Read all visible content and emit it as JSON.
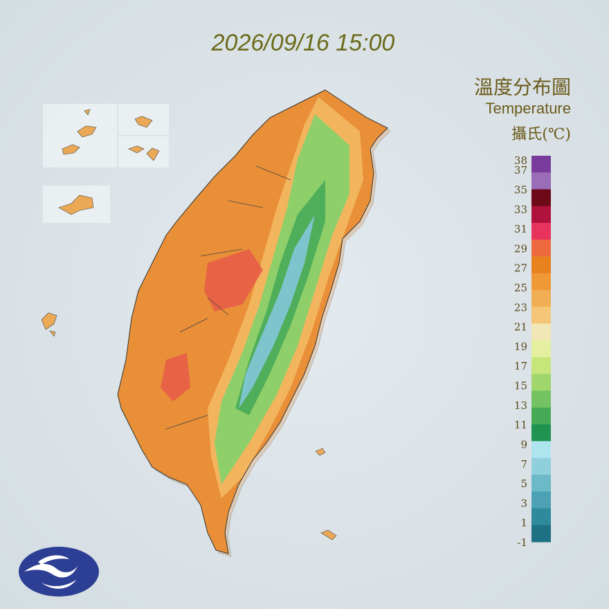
{
  "header": {
    "timestamp": "2026/09/16 15:00"
  },
  "legend": {
    "title": "溫度分布圖",
    "subtitle": "Temperature",
    "unit": "攝氏(℃)",
    "labels": [
      38,
      37,
      35,
      33,
      31,
      29,
      27,
      25,
      23,
      21,
      19,
      17,
      15,
      13,
      11,
      9,
      7,
      5,
      3,
      1,
      -1
    ],
    "colors": [
      "#7a3c9c",
      "#9b6cb8",
      "#6e0a18",
      "#b0123e",
      "#e8345c",
      "#ee6a3e",
      "#e8821f",
      "#ee9935",
      "#f2ae55",
      "#f5c678",
      "#f3e6b6",
      "#e4f0a0",
      "#c6e67c",
      "#a0d66c",
      "#74c262",
      "#45aa55",
      "#1f9450",
      "#aee4ee",
      "#90d0dc",
      "#6cb9c8",
      "#4ca2b4",
      "#2e8a9c",
      "#1c7282"
    ]
  }
}
